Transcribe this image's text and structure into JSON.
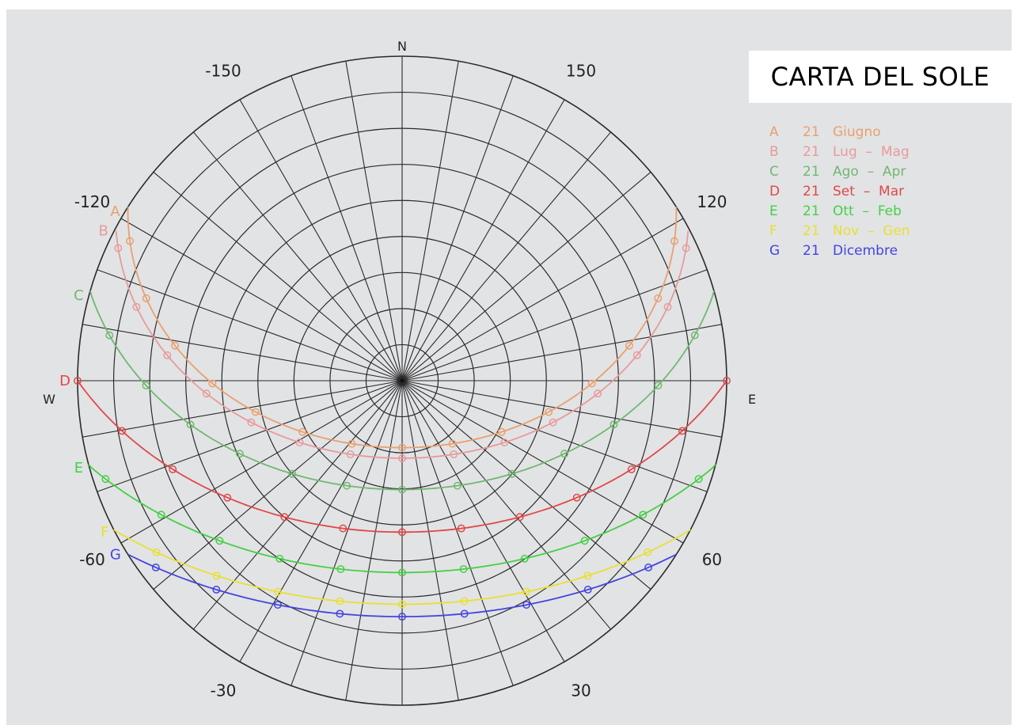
{
  "chart_data": {
    "type": "sun-path polar diagram",
    "title": "CARTA DEL SOLE",
    "compass": {
      "north": "N",
      "east": "E",
      "west": "W"
    },
    "azimuth_labels": [
      {
        "text": "-150",
        "azimuth": -150
      },
      {
        "text": "150",
        "azimuth": 150
      },
      {
        "text": "-120",
        "azimuth": -120
      },
      {
        "text": "120",
        "azimuth": 120
      },
      {
        "text": "-60",
        "azimuth": -60
      },
      {
        "text": "60",
        "azimuth": 60
      },
      {
        "text": "-30",
        "azimuth": -30
      },
      {
        "text": "30",
        "azimuth": 30
      }
    ],
    "altitude_circles_deg": [
      0,
      10,
      20,
      30,
      40,
      50,
      60,
      70,
      80
    ],
    "azimuth_spoke_step_deg": 10,
    "legend": [
      {
        "key": "A",
        "day": "21",
        "months": "Giugno",
        "color": "#e8a070"
      },
      {
        "key": "B",
        "day": "21",
        "months": "Lug  –  Mag",
        "color": "#e89a9a"
      },
      {
        "key": "C",
        "day": "21",
        "months": "Ago  –  Apr",
        "color": "#70b870"
      },
      {
        "key": "D",
        "day": "21",
        "months": "Set  –  Mar",
        "color": "#e04848"
      },
      {
        "key": "E",
        "day": "21",
        "months": "Ott  –  Feb",
        "color": "#44d044"
      },
      {
        "key": "F",
        "day": "21",
        "months": "Nov  –  Gen",
        "color": "#e8e030"
      },
      {
        "key": "G",
        "day": "21",
        "months": "Dicembre",
        "color": "#4444e0"
      }
    ],
    "series": [
      {
        "name": "A",
        "label": "A",
        "color": "#e8a070",
        "declination": 23.44
      },
      {
        "name": "B",
        "label": "B",
        "color": "#e89a9a",
        "declination": 20.5
      },
      {
        "name": "C",
        "label": "C",
        "color": "#70b870",
        "declination": 11.8
      },
      {
        "name": "D",
        "label": "D",
        "color": "#e04848",
        "declination": 0
      },
      {
        "name": "E",
        "label": "E",
        "color": "#44d044",
        "declination": -11.2
      },
      {
        "name": "F",
        "label": "F",
        "color": "#e8e030",
        "declination": -20.0
      },
      {
        "name": "G",
        "label": "G",
        "color": "#4444e0",
        "declination": -23.44
      }
    ],
    "latitude_deg": 42,
    "azimuth_convention": "0 = south, positive toward east"
  }
}
